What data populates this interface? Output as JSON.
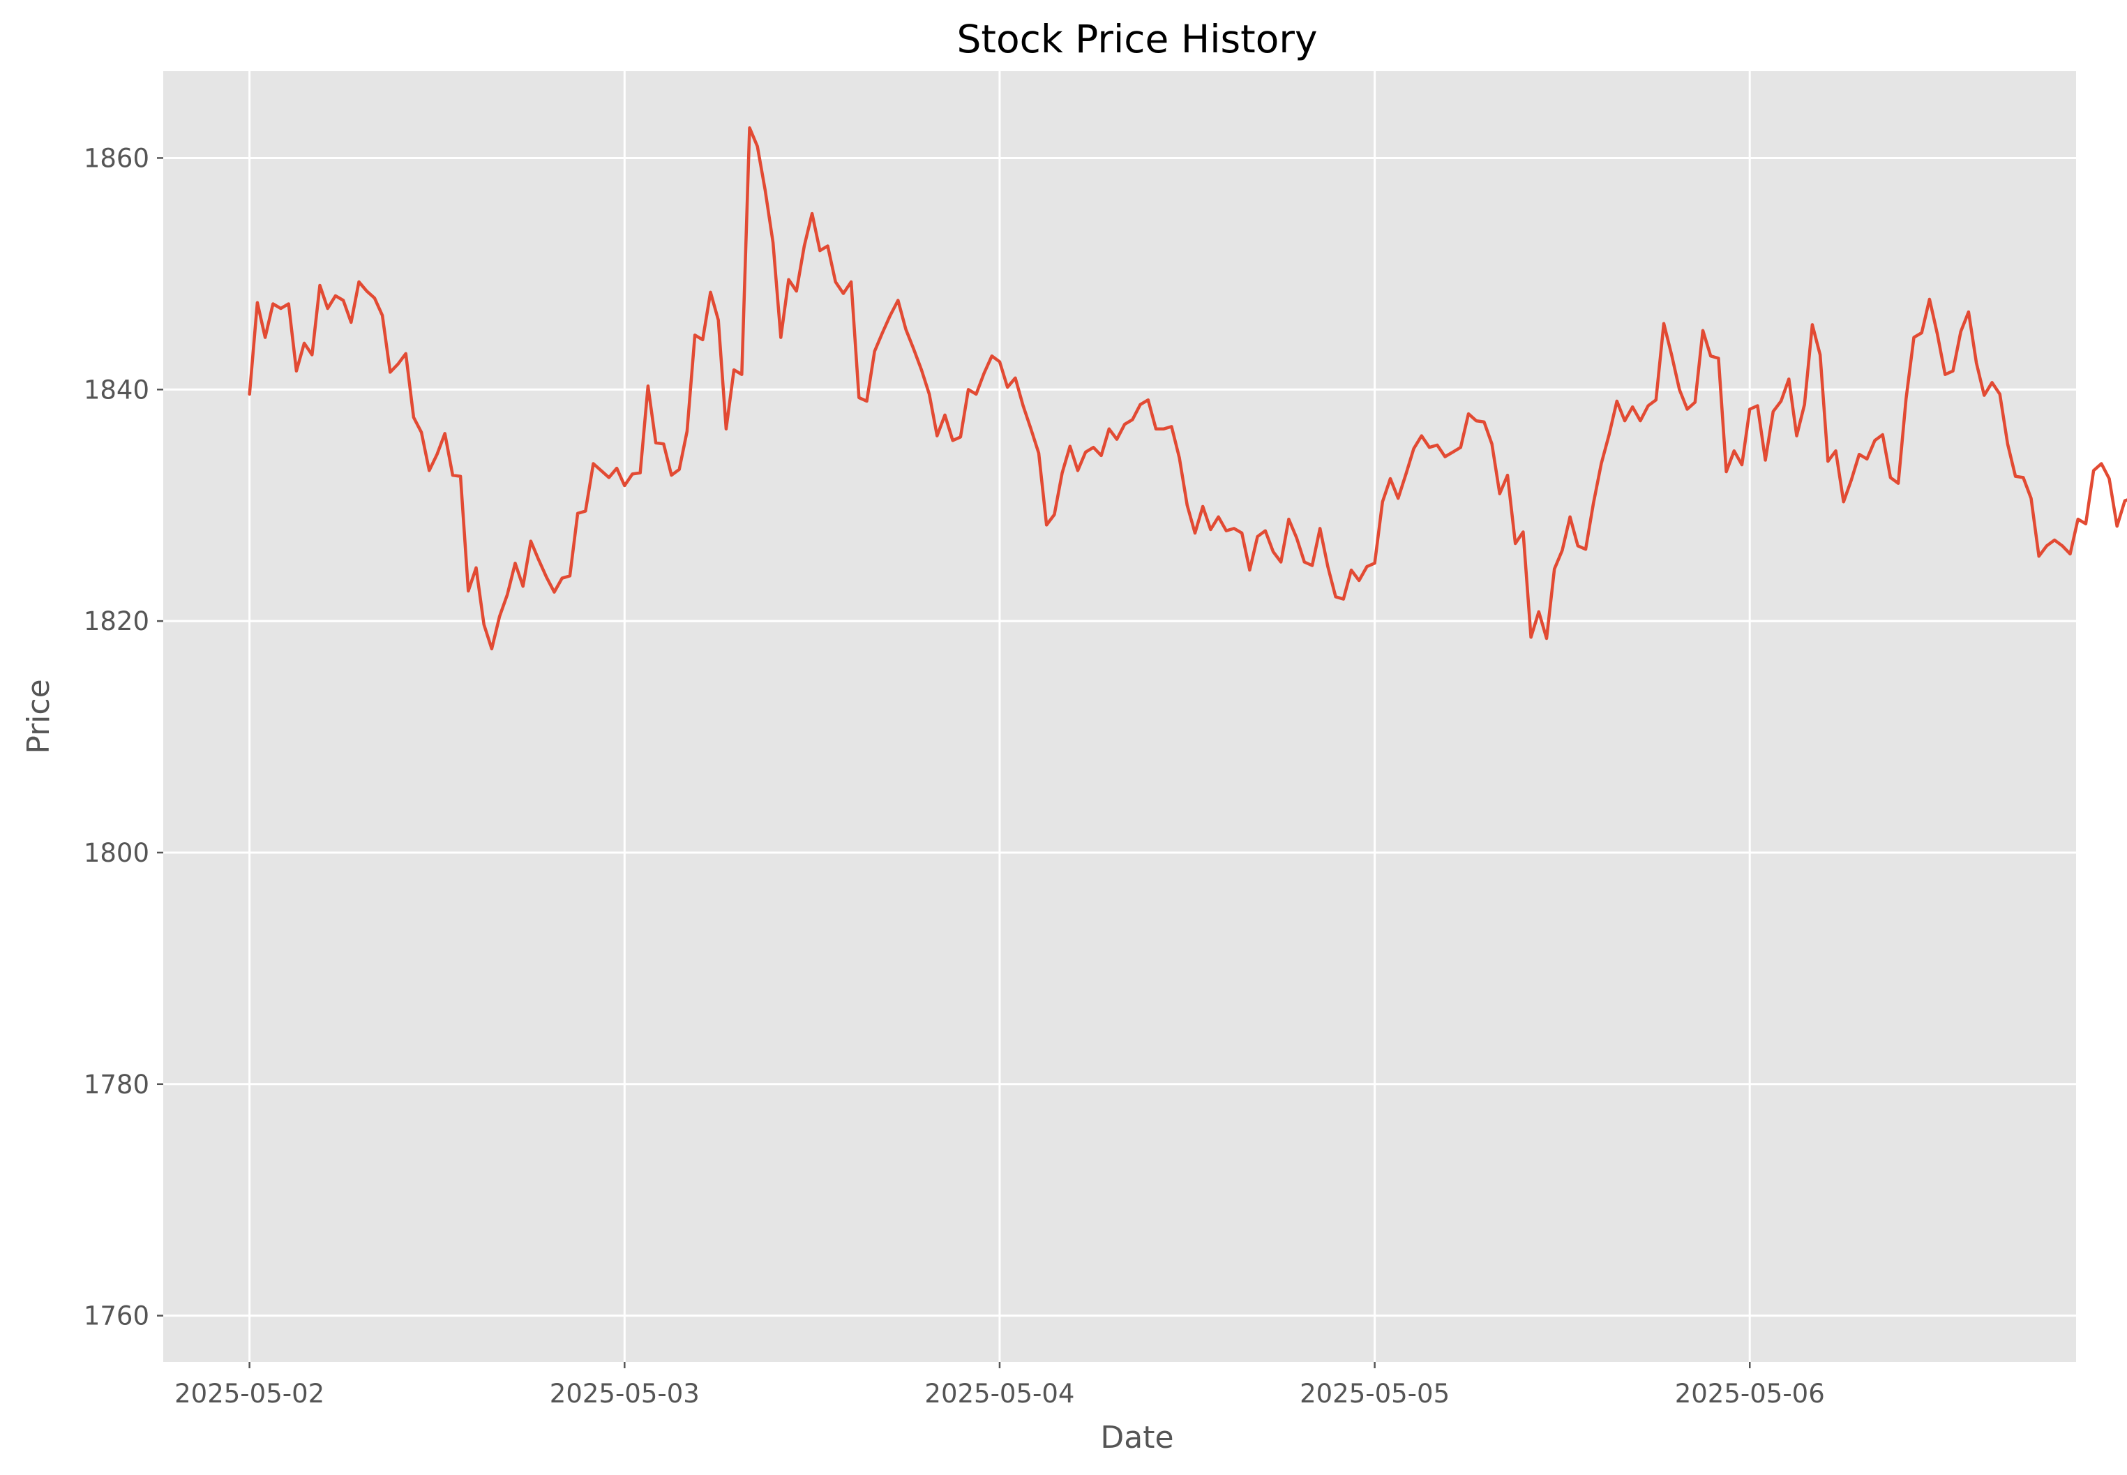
{
  "chart_data": {
    "type": "line",
    "title": "Stock Price History",
    "xlabel": "Date",
    "ylabel": "Price",
    "grid": true,
    "x_ticks": [
      "2025-05-02",
      "2025-05-03",
      "2025-05-04",
      "2025-05-05",
      "2025-05-06"
    ],
    "y_ticks": [
      1760,
      1780,
      1800,
      1820,
      1840,
      1860
    ],
    "xlim_days": [
      -0.23,
      4.87
    ],
    "ylim": [
      1756,
      1867.5
    ],
    "x_start": "2025-05-02",
    "x_step_hours": 0.5,
    "series": [
      {
        "name": "",
        "color": "#E24A33",
        "values": [
          1839.6,
          1847.5,
          1844.5,
          1847.4,
          1847.0,
          1847.4,
          1841.6,
          1844.0,
          1843.0,
          1849.0,
          1847.0,
          1848.1,
          1847.7,
          1845.8,
          1849.3,
          1848.5,
          1847.9,
          1846.4,
          1841.5,
          1842.2,
          1843.1,
          1837.6,
          1836.3,
          1833.0,
          1834.4,
          1836.2,
          1832.6,
          1832.5,
          1822.6,
          1824.6,
          1819.7,
          1817.6,
          1820.4,
          1822.3,
          1825.0,
          1823.0,
          1826.9,
          1825.3,
          1823.8,
          1822.5,
          1823.7,
          1823.9,
          1829.3,
          1829.5,
          1833.6,
          1833.0,
          1832.4,
          1833.2,
          1831.7,
          1832.7,
          1832.8,
          1840.3,
          1835.4,
          1835.3,
          1832.6,
          1833.1,
          1836.4,
          1844.7,
          1844.3,
          1848.4,
          1846.0,
          1836.6,
          1841.7,
          1841.3,
          1862.6,
          1861.0,
          1857.2,
          1852.7,
          1844.5,
          1849.5,
          1848.5,
          1852.4,
          1855.2,
          1852.0,
          1852.4,
          1849.3,
          1848.3,
          1849.3,
          1839.3,
          1839.0,
          1843.3,
          1844.9,
          1846.4,
          1847.7,
          1845.2,
          1843.5,
          1841.7,
          1839.6,
          1836.0,
          1837.8,
          1835.6,
          1835.9,
          1840.0,
          1839.6,
          1841.4,
          1842.9,
          1842.4,
          1840.2,
          1841.0,
          1838.6,
          1836.6,
          1834.5,
          1828.3,
          1829.2,
          1832.8,
          1835.1,
          1833.0,
          1834.6,
          1835.0,
          1834.3,
          1836.6,
          1835.7,
          1837.0,
          1837.4,
          1838.7,
          1839.1,
          1836.6,
          1836.6,
          1836.8,
          1834.1,
          1830.0,
          1827.6,
          1829.9,
          1827.9,
          1829.0,
          1827.8,
          1828.0,
          1827.6,
          1824.4,
          1827.3,
          1827.8,
          1826.0,
          1825.1,
          1828.8,
          1827.2,
          1825.1,
          1824.8,
          1828.0,
          1824.7,
          1822.1,
          1821.9,
          1824.4,
          1823.5,
          1824.7,
          1825.0,
          1830.3,
          1832.3,
          1830.6,
          1832.7,
          1834.9,
          1836.0,
          1835.0,
          1835.2,
          1834.2,
          1834.6,
          1835.0,
          1837.9,
          1837.3,
          1837.2,
          1835.3,
          1831.0,
          1832.6,
          1826.7,
          1827.7,
          1818.6,
          1820.8,
          1818.5,
          1824.5,
          1826.1,
          1829.0,
          1826.5,
          1826.2,
          1830.2,
          1833.6,
          1836.1,
          1839.0,
          1837.3,
          1838.5,
          1837.3,
          1838.6,
          1839.1,
          1845.7,
          1843.0,
          1840.0,
          1838.3,
          1838.9,
          1845.1,
          1842.9,
          1842.7,
          1832.9,
          1834.7,
          1833.5,
          1838.3,
          1838.6,
          1833.9,
          1838.1,
          1839.0,
          1840.9,
          1836.0,
          1838.7,
          1845.6,
          1843.0,
          1833.8,
          1834.7,
          1830.3,
          1832.2,
          1834.4,
          1834.0,
          1835.6,
          1836.1,
          1832.4,
          1831.9,
          1839.2,
          1844.5,
          1844.9,
          1847.8,
          1844.8,
          1841.3,
          1841.6,
          1845.0,
          1846.7,
          1842.3,
          1839.5,
          1840.6,
          1839.6,
          1835.3,
          1832.5,
          1832.4,
          1830.6,
          1825.6,
          1826.5,
          1827.0,
          1826.5,
          1825.8,
          1828.8,
          1828.4,
          1833.0,
          1833.6,
          1832.3,
          1828.2,
          1830.4,
          1830.6,
          1832.5,
          1831.0,
          1831.0,
          1828.0,
          1823.8,
          1825.2,
          1827.3,
          1828.7,
          1830.7,
          1832.3,
          1831.1,
          1829.4,
          1827.7,
          1830.8,
          1832.3,
          1831.0,
          1826.5,
          1827.2,
          1831.0,
          1825.7,
          1827.9,
          1829.0,
          1827.7,
          1829.1,
          1828.6,
          1827.3,
          1827.5,
          1828.2,
          1830.5,
          1829.1,
          1830.4,
          1840.1,
          1835.9,
          1836.0,
          1833.9,
          1834.6,
          1836.5,
          1835.9,
          1823.2,
          1826.0,
          1815.9,
          1818.1,
          1815.1,
          1810.6,
          1806.3,
          1807.7,
          1813.1,
          1816.0,
          1815.1,
          1817.7,
          1810.4,
          1806.0,
          1792.2,
          1791.4,
          1790.1,
          1795.0,
          1799.3,
          1799.6,
          1796.0,
          1794.5,
          1798.3,
          1796.4,
          1795.1,
          1800.0,
          1802.3,
          1805.3,
          1803.8,
          1804.9,
          1806.8,
          1816.2,
          1812.1,
          1813.9,
          1819.7,
          1820.5,
          1818.1,
          1820.6,
          1827.7,
          1826.6,
          1824.5,
          1826.9,
          1829.4,
          1828.3,
          1826.7,
          1827.3,
          1827.6,
          1825.3,
          1819.9,
          1814.0,
          1808.0,
          1804.2,
          1809.1,
          1802.4,
          1800.1,
          1806.3,
          1806.9,
          1808.8,
          1805.7,
          1804.4,
          1801.6,
          1802.5,
          1800.7,
          1807.1,
          1806.2,
          1802.6,
          1807.2,
          1804.1,
          1803.6,
          1805.1,
          1802.7,
          1800.3,
          1804.1,
          1810.2,
          1809.5,
          1808.2,
          1806.8,
          1812.8,
          1814.2,
          1814.5,
          1815.2,
          1815.6,
          1825.1,
          1822.3,
          1825.1,
          1820.9,
          1816.6,
          1815.1,
          1813.2,
          1813.3,
          1804.4,
          1809.3,
          1813.1,
          1816.3,
          1813.5,
          1816.9,
          1819.0,
          1820.2,
          1830.5,
          1826.1,
          1826.7,
          1826.0,
          1822.4,
          1820.0,
          1816.9,
          1818.2,
          1812.0,
          1813.3,
          1816.6,
          1817.4,
          1807.2,
          1805.1,
          1802.5,
          1797.3,
          1798.7,
          1802.9,
          1800.3,
          1803.3,
          1805.9,
          1806.5,
          1805.1,
          1806.9,
          1805.1,
          1806.6,
          1805.4,
          1802.4,
          1803.0,
          1798.7,
          1803.4,
          1803.8,
          1805.1,
          1805.3,
          1806.3,
          1803.8,
          1803.8,
          1806.5,
          1800.7,
          1793.1,
          1797.3,
          1800.9,
          1798.0,
          1797.0,
          1795.0,
          1797.3,
          1794.4,
          1794.5,
          1793.1,
          1785.2,
          1789.0,
          1783.2,
          1775.0,
          1767.9,
          1771.4,
          1771.5,
          1775.2,
          1774.9,
          1767.0,
          1762.2,
          1768.6,
          1760.9,
          1769.3,
          1773.2,
          1772.4,
          1769.1,
          1767.1,
          1773.5,
          1773.3,
          1770.5,
          1769.4,
          1767.6,
          1769.0,
          1762.5,
          1770.3,
          1773.2,
          1770.2,
          1767.2
        ]
      }
    ]
  }
}
